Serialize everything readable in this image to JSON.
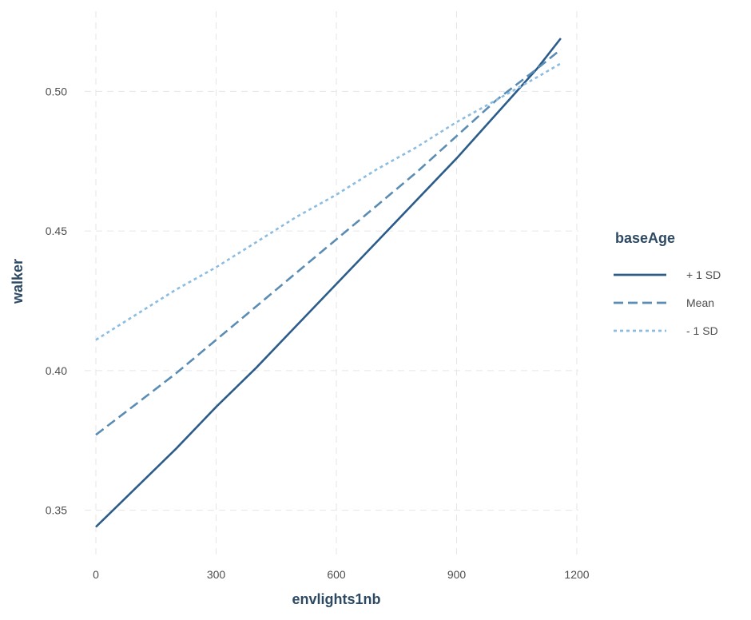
{
  "chart_data": {
    "type": "line",
    "xlabel": "envlights1nb",
    "ylabel": "walker",
    "xlim": [
      0,
      1200
    ],
    "ylim": [
      0.335,
      0.525
    ],
    "x_ticks": [
      0,
      300,
      600,
      900,
      1200
    ],
    "x_tick_labels": [
      "0",
      "300",
      "600",
      "900",
      "1200"
    ],
    "y_ticks": [
      0.35,
      0.4,
      0.45,
      0.5
    ],
    "y_tick_labels": [
      "0.35",
      "0.40",
      "0.45",
      "0.50"
    ],
    "grid": true,
    "legend": {
      "title": "baseAge",
      "placement": "right"
    },
    "series": [
      {
        "name": "+ 1 SD",
        "color": "#2b5c8a",
        "dash": "solid",
        "x": [
          0,
          100,
          200,
          300,
          400,
          500,
          600,
          700,
          800,
          900,
          1000,
          1100,
          1160
        ],
        "y": [
          0.344,
          0.358,
          0.372,
          0.387,
          0.401,
          0.416,
          0.431,
          0.446,
          0.461,
          0.476,
          0.492,
          0.508,
          0.519
        ]
      },
      {
        "name": "Mean",
        "color": "#5b8db4",
        "dash": "dashed",
        "x": [
          0,
          100,
          200,
          300,
          400,
          500,
          600,
          700,
          800,
          900,
          1000,
          1100,
          1160
        ],
        "y": [
          0.377,
          0.388,
          0.399,
          0.411,
          0.423,
          0.435,
          0.447,
          0.459,
          0.471,
          0.484,
          0.497,
          0.508,
          0.515
        ]
      },
      {
        "name": "- 1 SD",
        "color": "#8cbce0",
        "dash": "dotted",
        "x": [
          0,
          100,
          200,
          300,
          400,
          500,
          600,
          700,
          800,
          900,
          1000,
          1100,
          1160
        ],
        "y": [
          0.411,
          0.42,
          0.429,
          0.437,
          0.446,
          0.455,
          0.463,
          0.472,
          0.48,
          0.489,
          0.497,
          0.505,
          0.51
        ]
      }
    ]
  }
}
